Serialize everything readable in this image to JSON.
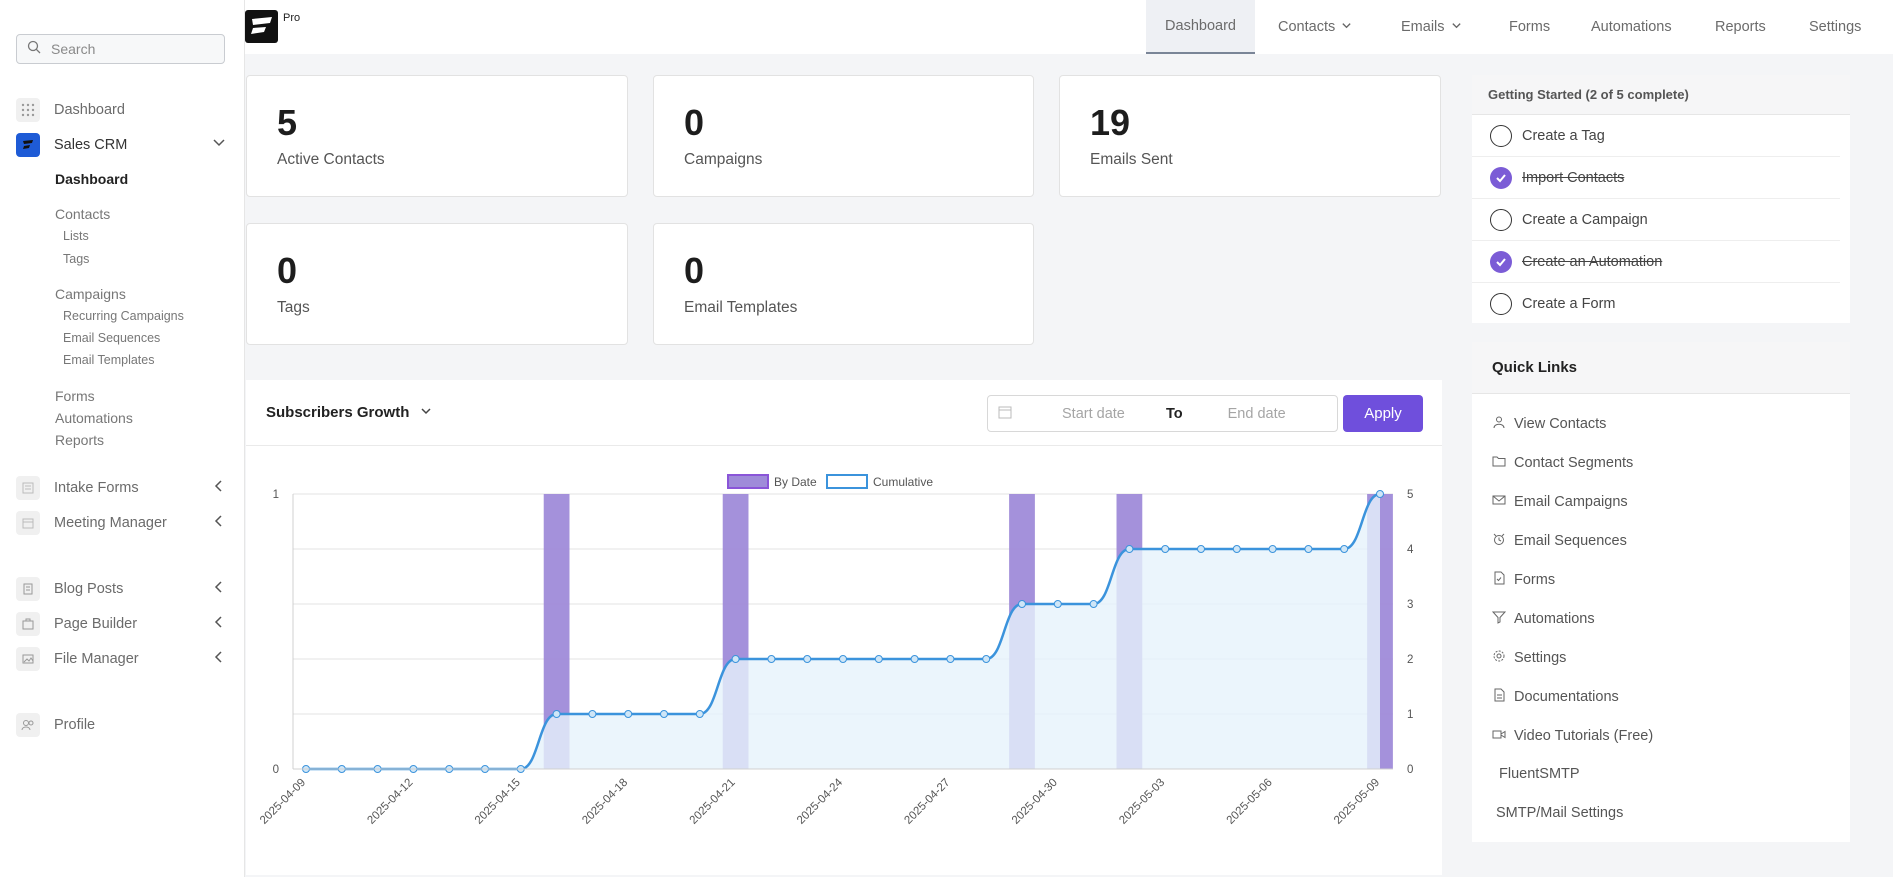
{
  "sidebar": {
    "search_placeholder": "Search",
    "dashboard": "Dashboard",
    "sales_crm": "Sales CRM",
    "crm_dashboard": "Dashboard",
    "contacts": "Contacts",
    "lists": "Lists",
    "tags": "Tags",
    "campaigns": "Campaigns",
    "recurring_campaigns": "Recurring Campaigns",
    "email_sequences": "Email Sequences",
    "email_templates": "Email Templates",
    "forms": "Forms",
    "automations": "Automations",
    "reports": "Reports",
    "intake_forms": "Intake Forms",
    "meeting_manager": "Meeting Manager",
    "blog_posts": "Blog Posts",
    "page_builder": "Page Builder",
    "file_manager": "File Manager",
    "profile": "Profile"
  },
  "topbar": {
    "pro": "Pro",
    "nav": [
      "Dashboard",
      "Contacts",
      "Emails",
      "Forms",
      "Automations",
      "Reports",
      "Settings"
    ]
  },
  "stats": [
    {
      "value": "5",
      "label": "Active Contacts"
    },
    {
      "value": "0",
      "label": "Campaigns"
    },
    {
      "value": "19",
      "label": "Emails Sent"
    },
    {
      "value": "0",
      "label": "Tags"
    },
    {
      "value": "0",
      "label": "Email Templates"
    }
  ],
  "getting_started": {
    "title": "Getting Started (2 of 5 complete)",
    "items": [
      {
        "label": "Create a Tag",
        "done": false
      },
      {
        "label": "Import Contacts",
        "done": true
      },
      {
        "label": "Create a Campaign",
        "done": false
      },
      {
        "label": "Create an Automation",
        "done": true
      },
      {
        "label": "Create a Form",
        "done": false
      }
    ]
  },
  "quick_links": {
    "title": "Quick Links",
    "items": [
      "View Contacts",
      "Contact Segments",
      "Email Campaigns",
      "Email Sequences",
      "Forms",
      "Automations",
      "Settings",
      "Documentations",
      "Video Tutorials (Free)",
      "FluentSMTP",
      "SMTP/Mail Settings"
    ]
  },
  "chart_panel": {
    "title": "Subscribers Growth",
    "start_placeholder": "Start date",
    "to": "To",
    "end_placeholder": "End date",
    "apply": "Apply"
  },
  "colors": {
    "accent": "#6f4fdc",
    "bar": "#9f8bd9",
    "line": "#3b93dc",
    "fill": "#e6f2fb"
  },
  "chart_data": {
    "type": "bar",
    "categories": [
      "2025-04-09",
      "2025-04-10",
      "2025-04-11",
      "2025-04-12",
      "2025-04-13",
      "2025-04-14",
      "2025-04-15",
      "2025-04-16",
      "2025-04-17",
      "2025-04-18",
      "2025-04-19",
      "2025-04-20",
      "2025-04-21",
      "2025-04-22",
      "2025-04-23",
      "2025-04-24",
      "2025-04-25",
      "2025-04-26",
      "2025-04-27",
      "2025-04-28",
      "2025-04-29",
      "2025-04-30",
      "2025-05-01",
      "2025-05-02",
      "2025-05-03",
      "2025-05-04",
      "2025-05-05",
      "2025-05-06",
      "2025-05-07",
      "2025-05-08",
      "2025-05-09"
    ],
    "tick_labels": [
      "2025-04-09",
      "2025-04-12",
      "2025-04-15",
      "2025-04-18",
      "2025-04-21",
      "2025-04-24",
      "2025-04-27",
      "2025-04-30",
      "2025-05-03",
      "2025-05-06",
      "2025-05-09"
    ],
    "series": [
      {
        "name": "By Date",
        "axis": "left",
        "values": [
          0,
          0,
          0,
          0,
          0,
          0,
          0,
          1,
          0,
          0,
          0,
          0,
          1,
          0,
          0,
          0,
          0,
          0,
          0,
          0,
          1,
          0,
          0,
          1,
          0,
          0,
          0,
          0,
          0,
          0,
          1
        ]
      },
      {
        "name": "Cumulative",
        "axis": "right",
        "values": [
          0,
          0,
          0,
          0,
          0,
          0,
          0,
          1,
          1,
          1,
          1,
          1,
          2,
          2,
          2,
          2,
          2,
          2,
          2,
          2,
          3,
          3,
          3,
          4,
          4,
          4,
          4,
          4,
          4,
          4,
          5
        ]
      }
    ],
    "ylim_left": [
      0,
      1
    ],
    "ylim_right": [
      0,
      5
    ],
    "yticks_left": [
      0,
      1
    ],
    "yticks_right": [
      0,
      1,
      2,
      3,
      4,
      5
    ],
    "legend": "top"
  }
}
